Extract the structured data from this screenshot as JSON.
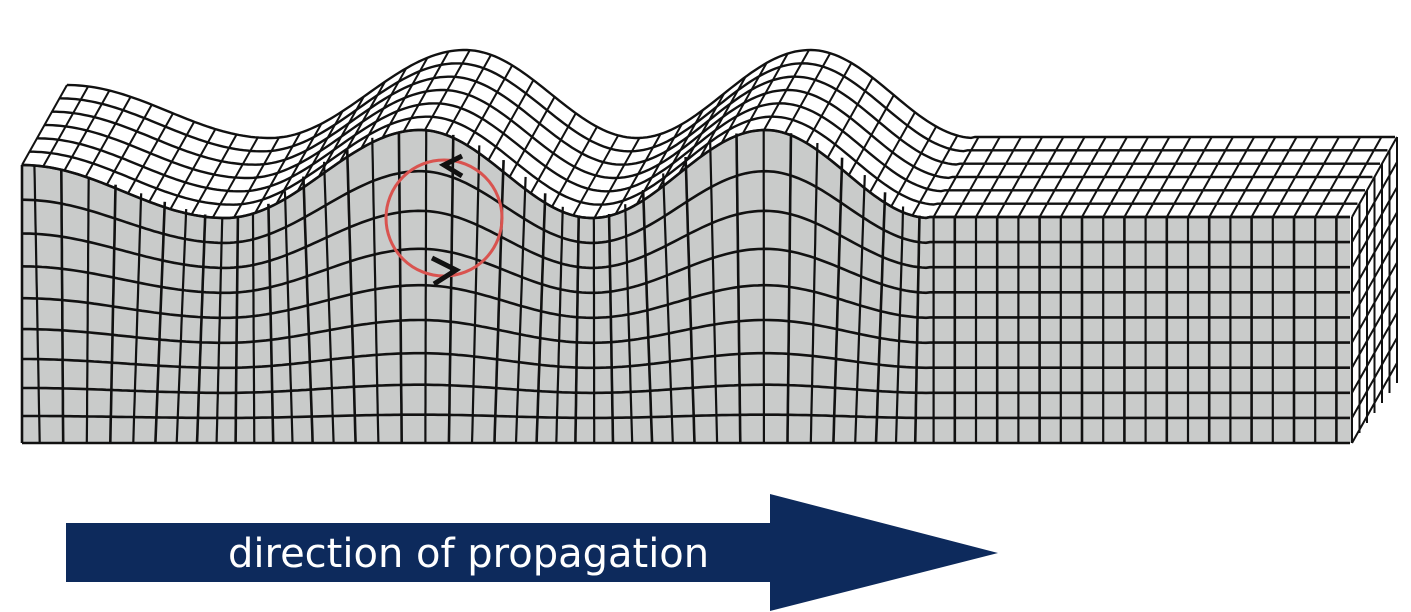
{
  "diagram": {
    "arrow_label": "direction of propagation",
    "colors": {
      "block_face": "#c9cbca",
      "grid_line": "#111111",
      "arrow_fill": "#0d2a5c",
      "arrow_text": "#ffffff",
      "particle_orbit": "#d9534f",
      "background": "#ffffff"
    },
    "elements": {
      "wave_block": "deformed-mesh",
      "orbit": "elliptical-particle-motion-circle"
    }
  }
}
